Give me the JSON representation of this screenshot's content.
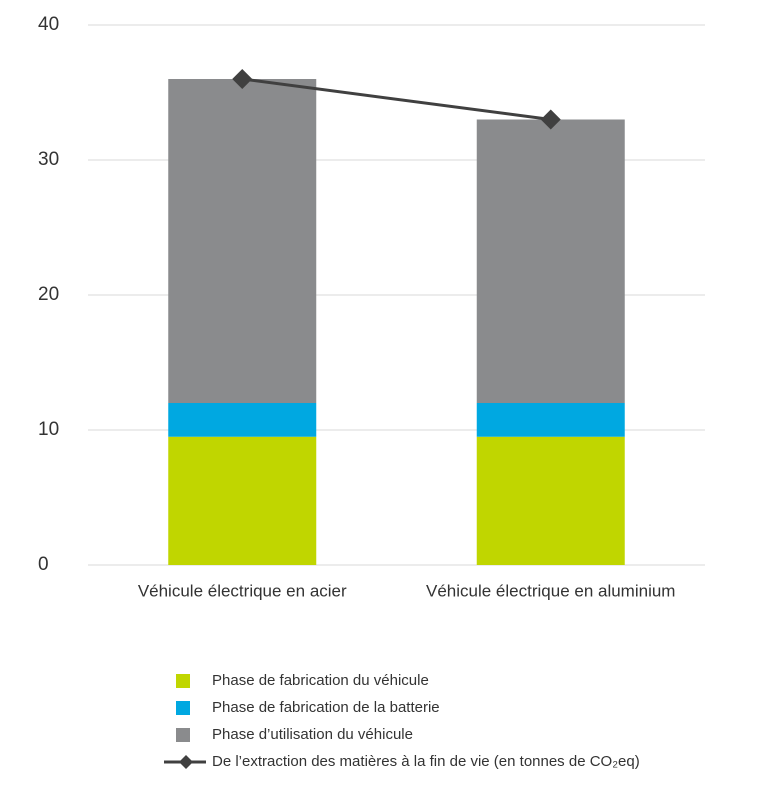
{
  "chart_data": {
    "type": "bar",
    "categories": [
      "Véhicule électrique en acier",
      "Véhicule électrique en aluminium"
    ],
    "series": [
      {
        "name": "Phase de fabrication du véhicule",
        "color": "#c0d600",
        "values": [
          9.5,
          9.5
        ]
      },
      {
        "name": "Phase de fabrication de la batterie",
        "color": "#00a8e1",
        "values": [
          2.5,
          2.5
        ]
      },
      {
        "name": "Phase d’utilisation du véhicule",
        "color": "#8a8b8d",
        "values": [
          24,
          21
        ]
      },
      {
        "name": "De l’extraction des matières à la fin de vie (en tonnes de CO₂eq)",
        "color": "#404040",
        "type": "line",
        "values": [
          36,
          33
        ]
      }
    ],
    "stacked": true,
    "ylim": [
      0,
      40
    ],
    "yticks": [
      0,
      10,
      20,
      30,
      40
    ],
    "grid": true,
    "legend": "bottom"
  }
}
